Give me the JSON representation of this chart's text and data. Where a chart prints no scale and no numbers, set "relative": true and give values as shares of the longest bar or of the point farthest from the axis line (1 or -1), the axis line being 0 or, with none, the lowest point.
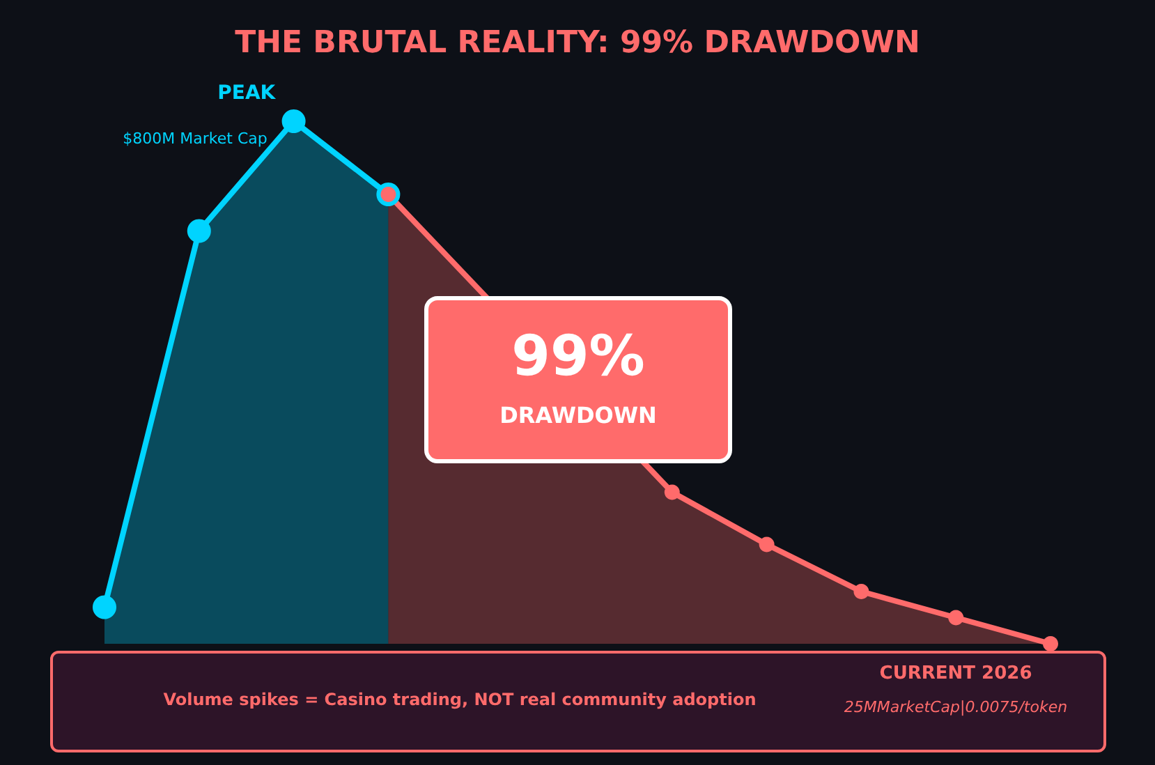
{
  "chart_data": {
    "type": "area",
    "title": "THE BRUTAL REALITY: 99% DRAWDOWN",
    "relative": true,
    "marker": "circle",
    "categories": [
      null,
      null,
      null,
      null,
      null,
      null,
      null,
      null,
      null,
      null,
      null
    ],
    "series": [
      {
        "color": "#00d4ff",
        "values": [
          0.07,
          0.79,
          1,
          0.86,
          null,
          null,
          null,
          null,
          null,
          null,
          null
        ]
      },
      {
        "color": "#ff6b6b",
        "values": [
          null,
          null,
          null,
          0.86,
          null,
          null,
          0.29,
          0.19,
          0.1,
          0.05,
          0
        ]
      }
    ],
    "annotations": [
      "PEAK",
      "$800M Market Cap",
      "99%",
      "DRAWDOWN",
      "CURRENT 2026",
      "25MMarketCap|0.0075/token",
      "Volume spikes = Casino trading, NOT real community adoption"
    ]
  }
}
